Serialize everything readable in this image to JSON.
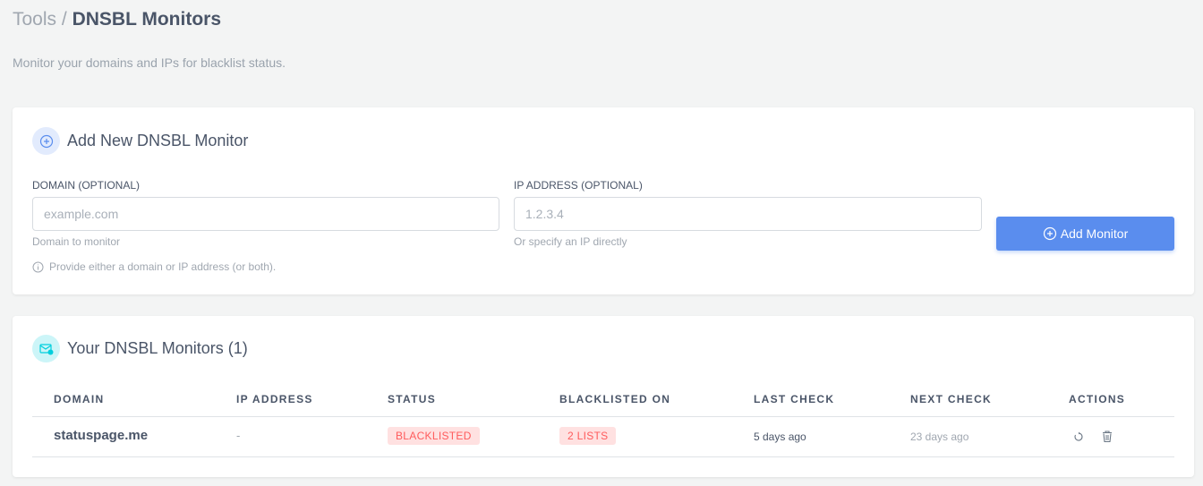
{
  "breadcrumb": {
    "parent": "Tools",
    "separator": "/",
    "current": "DNSBL Monitors"
  },
  "subtitle": "Monitor your domains and IPs for blacklist status.",
  "add_card": {
    "title": "Add New DNSBL Monitor",
    "domain_label": "DOMAIN (OPTIONAL)",
    "domain_placeholder": "example.com",
    "domain_value": "",
    "domain_help": "Domain to monitor",
    "ip_label": "IP ADDRESS (OPTIONAL)",
    "ip_placeholder": "1.2.3.4",
    "ip_value": "",
    "ip_help": "Or specify an IP directly",
    "note": "Provide either a domain or IP address (or both).",
    "button": "Add Monitor"
  },
  "list_card": {
    "title": "Your DNSBL Monitors (1)",
    "columns": [
      "DOMAIN",
      "IP ADDRESS",
      "STATUS",
      "BLACKLISTED ON",
      "LAST CHECK",
      "NEXT CHECK",
      "ACTIONS"
    ],
    "rows": [
      {
        "domain": "statuspage.me",
        "ip": "-",
        "status": "BLACKLISTED",
        "blacklisted_on": "2 LISTS",
        "last_check": "5 days ago",
        "next_check": "23 days ago"
      }
    ]
  },
  "colors": {
    "accent": "#5a8dee",
    "danger": "#ff5b5c",
    "danger_bg": "#ffe1e1",
    "info": "#00cfdd"
  }
}
